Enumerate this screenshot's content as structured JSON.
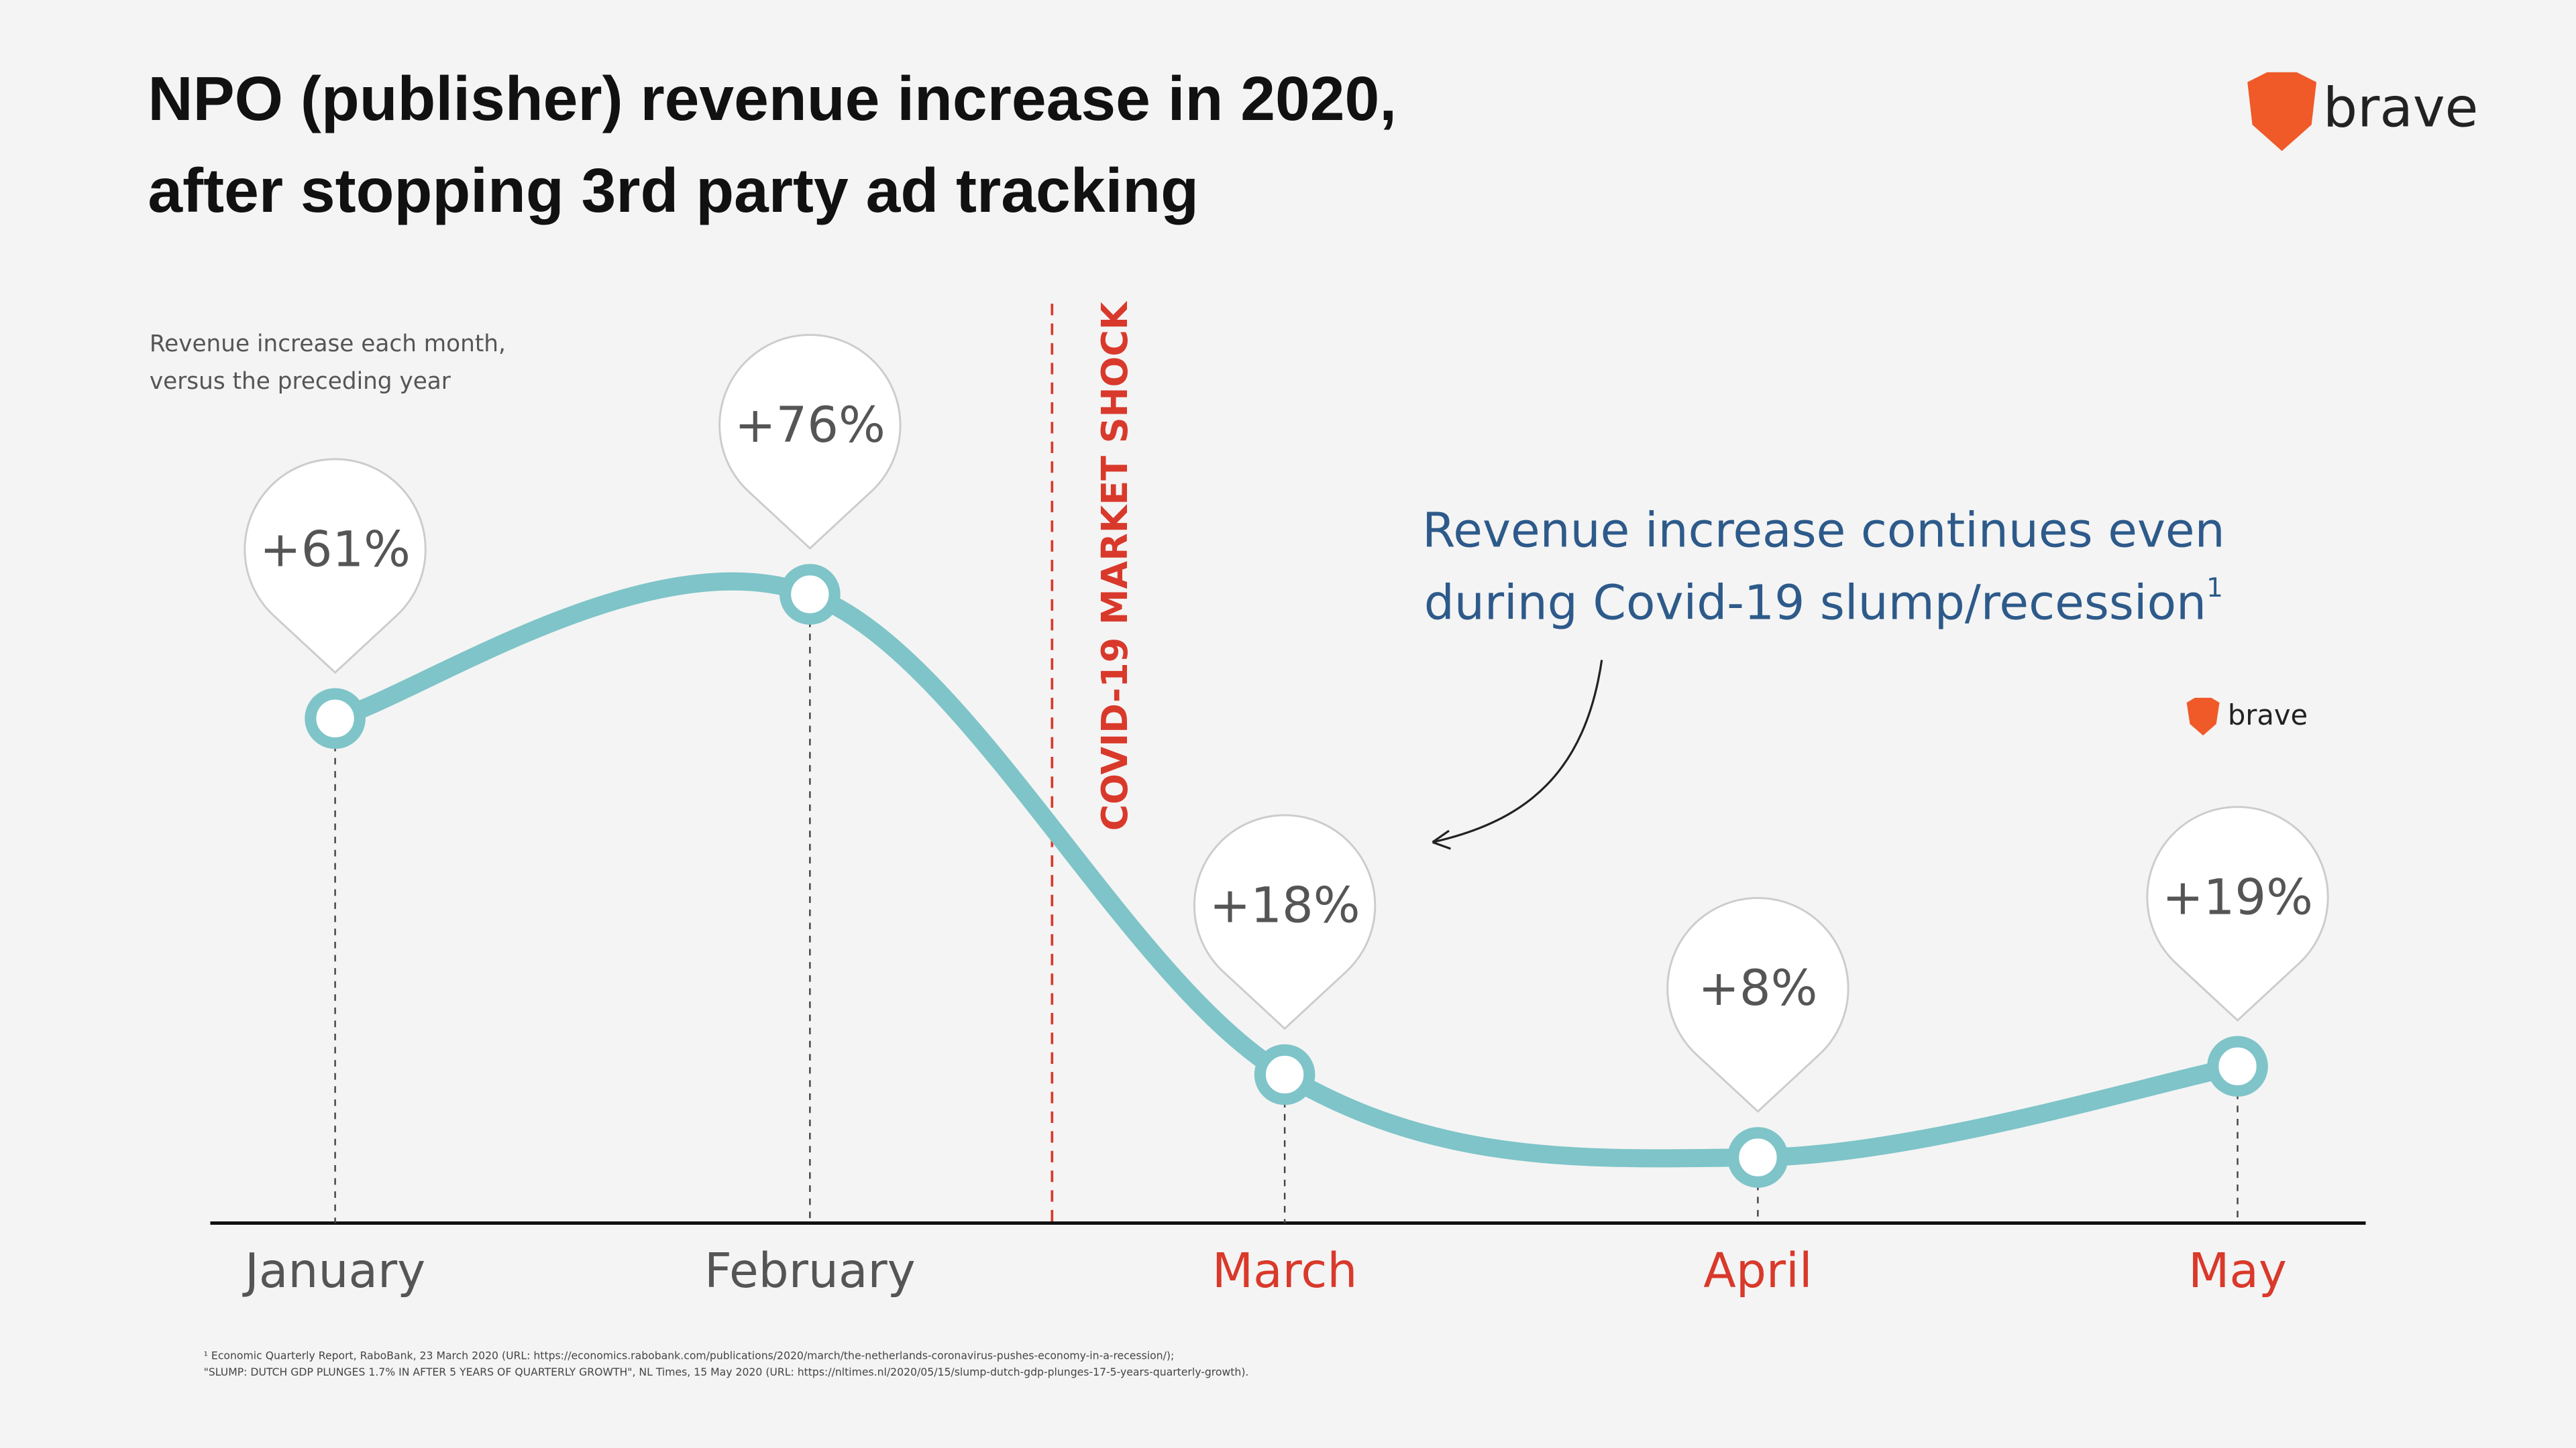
{
  "chart_data": {
    "type": "line",
    "title": [
      "NPO (publisher) revenue increase in 2020,",
      "after stopping 3rd party ad tracking"
    ],
    "subtitle": [
      "Revenue increase each month,",
      "versus the preceding year"
    ],
    "categories": [
      "January",
      "February",
      "March",
      "April",
      "May"
    ],
    "category_colors": [
      "#555555",
      "#555555",
      "#d9392b",
      "#d9392b",
      "#d9392b"
    ],
    "values": [
      61,
      76,
      18,
      8,
      19
    ],
    "value_labels": [
      "+61%",
      "+76%",
      "+18%",
      "+8%",
      "+19%"
    ],
    "color": "#7ec4c8",
    "event": {
      "label": "COVID-19 MARKET SHOCK",
      "color": "#d9392b"
    },
    "annotation": {
      "lines": [
        "Revenue increase continues even",
        "during Covid-19 slump/recession"
      ],
      "note_mark": "1",
      "color": "#2d5a8a"
    },
    "footnotes": [
      "¹ Economic Quarterly Report, RaboBank, 23 March 2020 (URL: https://economics.rabobank.com/publications/2020/march/the-netherlands-coronavirus-pushes-economy-in-a-recession/);",
      " \"SLUMP: DUTCH GDP PLUNGES 1.7% IN AFTER 5 YEARS OF QUARTERLY GROWTH\", NL Times, 15 May 2020 (URL: https://nltimes.nl/2020/05/15/slump-dutch-gdp-plunges-17-5-years-quarterly-growth)."
    ],
    "logo_text": "brave"
  }
}
